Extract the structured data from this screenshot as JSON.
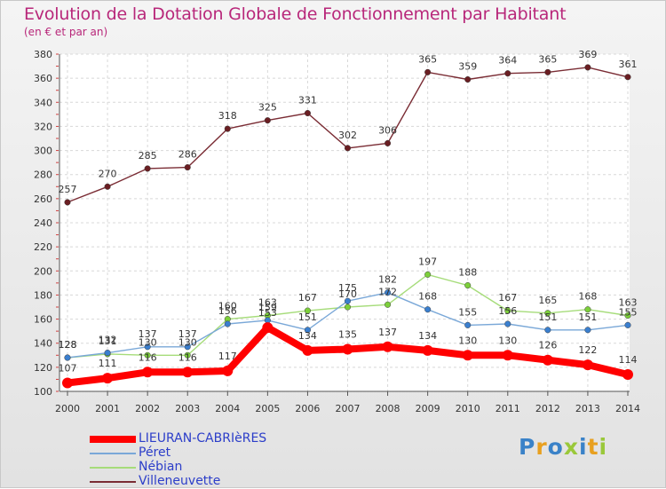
{
  "header": {
    "title": "Evolution de la Dotation Globale de Fonctionnement par Habitant",
    "subtitle": "(en € et par an)"
  },
  "logo": {
    "text": "Proxiti",
    "colors": [
      "#3a82c8",
      "#e8a020",
      "#3a82c8",
      "#9ac83a",
      "#3a82c8",
      "#e8a020",
      "#9ac83a"
    ]
  },
  "chart_data": {
    "type": "line",
    "title": "Evolution de la Dotation Globale de Fonctionnement par Habitant",
    "subtitle": "(en € et par an)",
    "x": [
      "2000",
      "2001",
      "2002",
      "2003",
      "2004",
      "2005",
      "2006",
      "2007",
      "2008",
      "2009",
      "2010",
      "2011",
      "2012",
      "2013",
      "2014"
    ],
    "ylim": [
      100,
      380
    ],
    "yticks": [
      100,
      120,
      140,
      160,
      180,
      200,
      220,
      240,
      260,
      280,
      300,
      320,
      340,
      360,
      380
    ],
    "grid": true,
    "legend_position": "bottom-left",
    "series": [
      {
        "name": "LIEURAN-CABRIèRES",
        "color": "#ff0000",
        "marker": "#ff0000",
        "labels": true,
        "values": [
          107,
          111,
          116,
          116,
          117,
          153,
          134,
          135,
          137,
          134,
          130,
          130,
          126,
          122,
          114
        ]
      },
      {
        "name": "Péret",
        "color": "#7aa8d8",
        "marker": "#3a7fcf",
        "labels": true,
        "values": [
          128,
          132,
          137,
          137,
          156,
          159,
          151,
          175,
          182,
          168,
          155,
          156,
          151,
          151,
          155
        ]
      },
      {
        "name": "Nébian",
        "color": "#a6dc7a",
        "marker": "#7ccf3a",
        "labels": true,
        "values": [
          128,
          131,
          130,
          130,
          160,
          163,
          167,
          170,
          172,
          197,
          188,
          167,
          165,
          168,
          163
        ]
      },
      {
        "name": "Villeneuvette",
        "color": "#7a2c34",
        "marker": "#6a1e22",
        "labels": true,
        "values": [
          257,
          270,
          285,
          286,
          318,
          325,
          331,
          302,
          306,
          365,
          359,
          364,
          365,
          369,
          361
        ]
      }
    ]
  }
}
